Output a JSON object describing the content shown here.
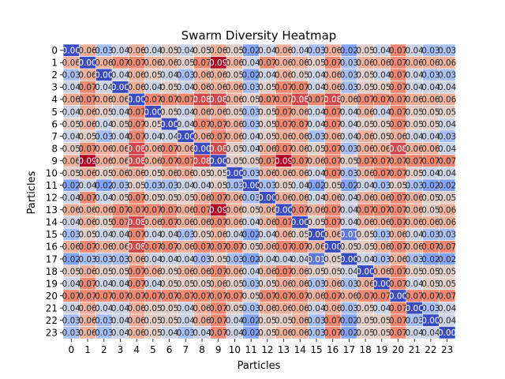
{
  "chart_data": {
    "type": "heatmap",
    "title": "Swarm Diversity Heatmap",
    "xlabel": "Particles",
    "ylabel": "Particles",
    "x_categories": [
      "0",
      "1",
      "2",
      "3",
      "4",
      "5",
      "6",
      "7",
      "8",
      "9",
      "10",
      "11",
      "12",
      "13",
      "14",
      "15",
      "16",
      "17",
      "18",
      "19",
      "20",
      "21",
      "22",
      "23"
    ],
    "y_categories": [
      "0",
      "1",
      "2",
      "3",
      "4",
      "5",
      "6",
      "7",
      "8",
      "9",
      "10",
      "11",
      "12",
      "13",
      "14",
      "15",
      "16",
      "17",
      "18",
      "19",
      "20",
      "21",
      "22",
      "23"
    ],
    "colormap": "coolwarm",
    "vmin": 0.0,
    "vmax": 0.09,
    "value_format": "2dp",
    "cell_border_color": "#ffffff",
    "values": [
      [
        0.0,
        0.06,
        0.03,
        0.04,
        0.06,
        0.04,
        0.05,
        0.04,
        0.05,
        0.06,
        0.05,
        0.02,
        0.04,
        0.06,
        0.04,
        0.03,
        0.06,
        0.02,
        0.05,
        0.04,
        0.07,
        0.04,
        0.03,
        0.03
      ],
      [
        0.06,
        0.0,
        0.06,
        0.07,
        0.07,
        0.06,
        0.06,
        0.05,
        0.07,
        0.09,
        0.06,
        0.04,
        0.07,
        0.06,
        0.06,
        0.05,
        0.07,
        0.03,
        0.06,
        0.06,
        0.07,
        0.06,
        0.06,
        0.06
      ],
      [
        0.03,
        0.06,
        0.0,
        0.04,
        0.06,
        0.05,
        0.04,
        0.03,
        0.06,
        0.06,
        0.05,
        0.02,
        0.04,
        0.06,
        0.05,
        0.04,
        0.06,
        0.03,
        0.05,
        0.04,
        0.07,
        0.04,
        0.03,
        0.03
      ],
      [
        0.04,
        0.07,
        0.04,
        0.0,
        0.06,
        0.04,
        0.05,
        0.04,
        0.06,
        0.06,
        0.06,
        0.03,
        0.05,
        0.07,
        0.07,
        0.04,
        0.06,
        0.03,
        0.05,
        0.05,
        0.07,
        0.04,
        0.04,
        0.04
      ],
      [
        0.06,
        0.07,
        0.06,
        0.06,
        0.0,
        0.07,
        0.07,
        0.07,
        0.08,
        0.08,
        0.06,
        0.05,
        0.07,
        0.07,
        0.08,
        0.07,
        0.08,
        0.06,
        0.07,
        0.07,
        0.07,
        0.06,
        0.06,
        0.06
      ],
      [
        0.04,
        0.06,
        0.05,
        0.04,
        0.07,
        0.0,
        0.05,
        0.04,
        0.06,
        0.06,
        0.05,
        0.03,
        0.05,
        0.07,
        0.06,
        0.04,
        0.07,
        0.04,
        0.06,
        0.04,
        0.07,
        0.05,
        0.05,
        0.05
      ],
      [
        0.05,
        0.06,
        0.04,
        0.05,
        0.07,
        0.05,
        0.0,
        0.04,
        0.07,
        0.07,
        0.06,
        0.03,
        0.05,
        0.07,
        0.07,
        0.04,
        0.07,
        0.04,
        0.05,
        0.05,
        0.07,
        0.05,
        0.05,
        0.04
      ],
      [
        0.04,
        0.05,
        0.03,
        0.04,
        0.07,
        0.04,
        0.04,
        0.0,
        0.06,
        0.07,
        0.06,
        0.04,
        0.05,
        0.06,
        0.06,
        0.03,
        0.06,
        0.04,
        0.06,
        0.05,
        0.06,
        0.04,
        0.04,
        0.03
      ],
      [
        0.05,
        0.07,
        0.06,
        0.06,
        0.08,
        0.06,
        0.07,
        0.06,
        0.0,
        0.08,
        0.05,
        0.04,
        0.06,
        0.07,
        0.06,
        0.05,
        0.07,
        0.03,
        0.06,
        0.06,
        0.08,
        0.06,
        0.06,
        0.04
      ],
      [
        0.06,
        0.09,
        0.06,
        0.06,
        0.08,
        0.06,
        0.07,
        0.07,
        0.08,
        0.0,
        0.05,
        0.05,
        0.07,
        0.09,
        0.07,
        0.06,
        0.07,
        0.05,
        0.07,
        0.07,
        0.07,
        0.07,
        0.07,
        0.07
      ],
      [
        0.05,
        0.06,
        0.05,
        0.06,
        0.06,
        0.05,
        0.06,
        0.06,
        0.05,
        0.05,
        0.0,
        0.03,
        0.06,
        0.06,
        0.06,
        0.04,
        0.07,
        0.03,
        0.06,
        0.07,
        0.07,
        0.05,
        0.04,
        0.04
      ],
      [
        0.02,
        0.04,
        0.02,
        0.03,
        0.05,
        0.03,
        0.03,
        0.04,
        0.04,
        0.05,
        0.03,
        0.0,
        0.03,
        0.05,
        0.04,
        0.02,
        0.05,
        0.02,
        0.04,
        0.03,
        0.05,
        0.03,
        0.02,
        0.02
      ],
      [
        0.04,
        0.07,
        0.04,
        0.05,
        0.07,
        0.05,
        0.05,
        0.05,
        0.06,
        0.07,
        0.06,
        0.03,
        0.0,
        0.06,
        0.06,
        0.04,
        0.06,
        0.04,
        0.06,
        0.06,
        0.07,
        0.06,
        0.05,
        0.05
      ],
      [
        0.06,
        0.06,
        0.06,
        0.07,
        0.07,
        0.07,
        0.07,
        0.06,
        0.07,
        0.09,
        0.06,
        0.05,
        0.06,
        0.0,
        0.07,
        0.06,
        0.07,
        0.04,
        0.07,
        0.07,
        0.07,
        0.06,
        0.05,
        0.06
      ],
      [
        0.04,
        0.06,
        0.05,
        0.07,
        0.08,
        0.06,
        0.07,
        0.06,
        0.06,
        0.07,
        0.06,
        0.04,
        0.06,
        0.07,
        0.0,
        0.05,
        0.07,
        0.04,
        0.06,
        0.06,
        0.07,
        0.06,
        0.06,
        0.06
      ],
      [
        0.03,
        0.05,
        0.04,
        0.04,
        0.07,
        0.04,
        0.04,
        0.03,
        0.05,
        0.06,
        0.04,
        0.02,
        0.04,
        0.06,
        0.05,
        0.0,
        0.06,
        0.01,
        0.05,
        0.03,
        0.06,
        0.04,
        0.03,
        0.03
      ],
      [
        0.06,
        0.07,
        0.06,
        0.06,
        0.08,
        0.07,
        0.07,
        0.06,
        0.07,
        0.07,
        0.07,
        0.05,
        0.06,
        0.07,
        0.07,
        0.06,
        0.0,
        0.05,
        0.05,
        0.06,
        0.07,
        0.06,
        0.07,
        0.07
      ],
      [
        0.02,
        0.03,
        0.03,
        0.03,
        0.06,
        0.04,
        0.04,
        0.04,
        0.03,
        0.05,
        0.03,
        0.02,
        0.04,
        0.04,
        0.04,
        0.01,
        0.05,
        0.0,
        0.04,
        0.03,
        0.06,
        0.03,
        0.02,
        0.02
      ],
      [
        0.05,
        0.06,
        0.05,
        0.05,
        0.07,
        0.06,
        0.05,
        0.06,
        0.06,
        0.07,
        0.06,
        0.04,
        0.06,
        0.07,
        0.06,
        0.05,
        0.05,
        0.04,
        0.0,
        0.06,
        0.07,
        0.05,
        0.05,
        0.05
      ],
      [
        0.04,
        0.07,
        0.04,
        0.04,
        0.07,
        0.04,
        0.05,
        0.05,
        0.05,
        0.06,
        0.05,
        0.03,
        0.05,
        0.06,
        0.06,
        0.03,
        0.06,
        0.03,
        0.06,
        0.0,
        0.07,
        0.04,
        0.05,
        0.05
      ],
      [
        0.07,
        0.07,
        0.07,
        0.07,
        0.07,
        0.07,
        0.07,
        0.07,
        0.07,
        0.07,
        0.07,
        0.05,
        0.07,
        0.07,
        0.07,
        0.06,
        0.07,
        0.06,
        0.07,
        0.07,
        0.0,
        0.07,
        0.07,
        0.07
      ],
      [
        0.04,
        0.06,
        0.04,
        0.04,
        0.06,
        0.05,
        0.05,
        0.04,
        0.06,
        0.07,
        0.05,
        0.03,
        0.06,
        0.06,
        0.06,
        0.04,
        0.06,
        0.03,
        0.05,
        0.04,
        0.07,
        0.0,
        0.03,
        0.04
      ],
      [
        0.03,
        0.06,
        0.03,
        0.04,
        0.06,
        0.05,
        0.05,
        0.04,
        0.06,
        0.07,
        0.04,
        0.02,
        0.05,
        0.05,
        0.06,
        0.03,
        0.07,
        0.02,
        0.05,
        0.05,
        0.07,
        0.03,
        0.0,
        0.04
      ],
      [
        0.03,
        0.06,
        0.03,
        0.04,
        0.06,
        0.05,
        0.04,
        0.03,
        0.04,
        0.07,
        0.04,
        0.02,
        0.05,
        0.06,
        0.06,
        0.03,
        0.07,
        0.02,
        0.05,
        0.05,
        0.07,
        0.04,
        0.04,
        0.0
      ]
    ]
  }
}
